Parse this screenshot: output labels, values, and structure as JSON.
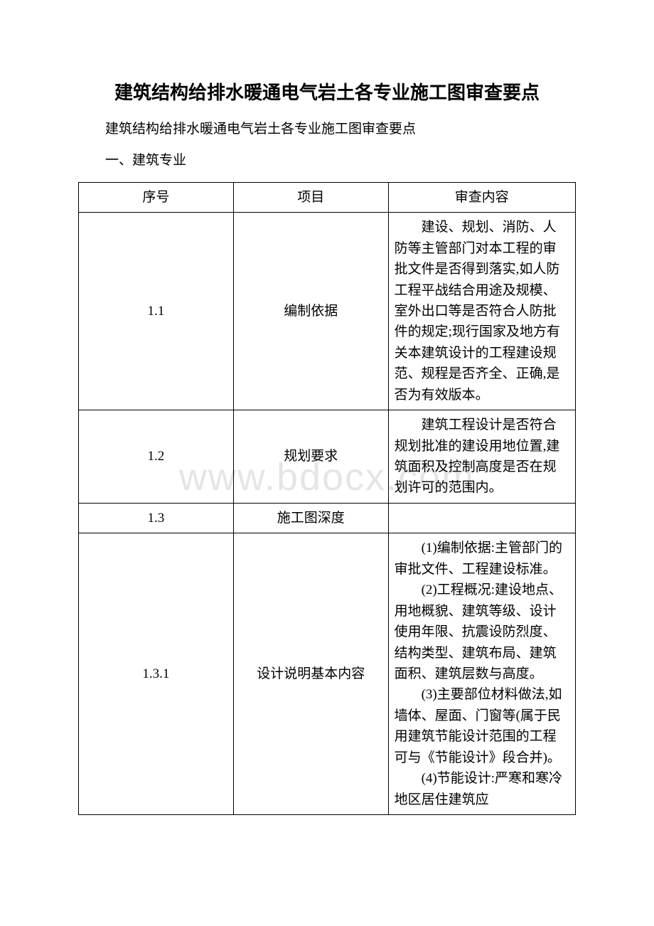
{
  "title": "建筑结构给排水暖通电气岩土各专业施工图审查要点",
  "subtitle": "建筑结构给排水暖通电气岩土各专业施工图审查要点",
  "section_heading": "一、建筑专业",
  "watermark": "www.bdocx.com",
  "table": {
    "header": {
      "seq": "序号",
      "item": "项目",
      "content": "审查内容"
    },
    "rows": [
      {
        "seq": "1.1",
        "item": "编制依据",
        "content_paras": [
          "建设、规划、消防、人防等主管部门对本工程的审批文件是否得到落实,如人防工程平战结合用途及规模、室外出口等是否符合人防批件的规定;现行国家及地方有关本建筑设计的工程建设规范、规程是否齐全、正确,是否为有效版本。"
        ]
      },
      {
        "seq": "1.2",
        "item": "规划要求",
        "content_paras": [
          "建筑工程设计是否符合规划批准的建设用地位置,建筑面积及控制高度是否在规划许可的范围内。"
        ]
      },
      {
        "seq": "1.3",
        "item": "施工图深度",
        "content_paras": []
      },
      {
        "seq": "1.3.1",
        "item": "设计说明基本内容",
        "content_paras": [
          "(1)编制依据:主管部门的审批文件、工程建设标准。",
          "(2)工程概况:建设地点、用地概貌、建筑等级、设计使用年限、抗震设防烈度、结构类型、建筑布局、建筑面积、建筑层数与高度。",
          "(3)主要部位材料做法,如墙体、屋面、门窗等(属于民用建筑节能设计范围的工程可与《节能设计》段合并)。",
          "(4)节能设计:严寒和寒冷地区居住建筑应"
        ]
      }
    ]
  }
}
